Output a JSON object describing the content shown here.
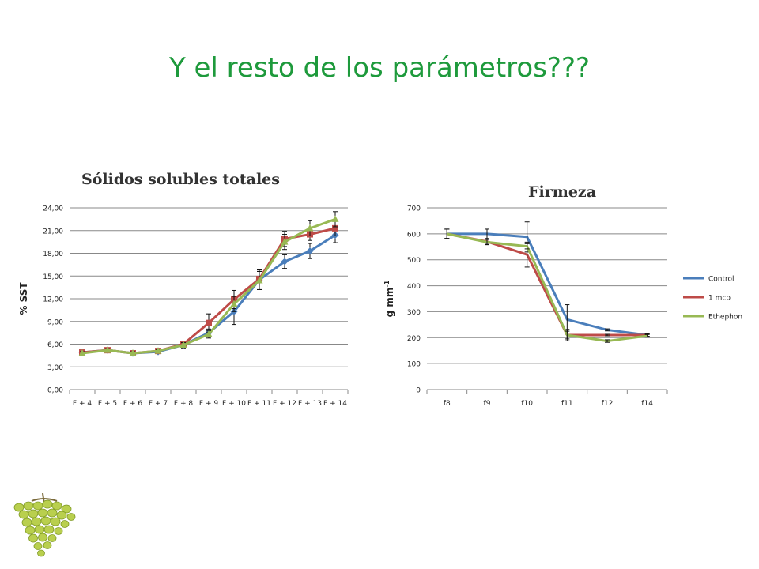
{
  "slide": {
    "title": "Y el resto de los parámetros???"
  },
  "chart_data": [
    {
      "type": "line",
      "title": "Sólidos solubles totales",
      "ylabel": "% SST",
      "xlabel": "",
      "categories": [
        "F + 4",
        "F + 5",
        "F + 6",
        "F + 7",
        "F + 8",
        "F + 9",
        "F + 10",
        "F + 11",
        "F + 12",
        "F + 13",
        "F + 14"
      ],
      "ylim": [
        0,
        24
      ],
      "yticks": [
        "0,00",
        "3,00",
        "6,00",
        "9,00",
        "12,00",
        "15,00",
        "18,00",
        "21,00",
        "24,00"
      ],
      "grid": true,
      "legend": "none",
      "series": [
        {
          "color": "#4a7ebb",
          "marker": "diamond",
          "values": [
            4.9,
            5.2,
            4.8,
            5.0,
            5.9,
            7.5,
            10.3,
            14.5,
            16.9,
            18.3,
            20.4
          ],
          "errors": [
            0.2,
            0.2,
            0.2,
            0.2,
            0.4,
            0.5,
            1.7,
            1.3,
            0.9,
            1.0,
            1.0
          ]
        },
        {
          "color": "#be4b48",
          "marker": "square",
          "values": [
            4.9,
            5.2,
            4.8,
            5.1,
            6.0,
            8.8,
            11.9,
            14.6,
            19.9,
            20.5,
            21.3
          ],
          "errors": [
            0.2,
            0.2,
            0.2,
            0.2,
            0.4,
            1.2,
            1.2,
            1.2,
            1.0,
            0.8,
            1.0
          ]
        },
        {
          "color": "#98b954",
          "marker": "triangle",
          "values": [
            4.8,
            5.2,
            4.8,
            5.1,
            5.9,
            7.3,
            11.3,
            14.4,
            19.5,
            21.3,
            22.5
          ],
          "errors": [
            0.2,
            0.2,
            0.2,
            0.2,
            0.3,
            0.5,
            1.0,
            1.2,
            1.0,
            1.0,
            1.0
          ]
        }
      ]
    },
    {
      "type": "line",
      "title": "Firmeza",
      "ylabel": "g mm",
      "ylabel_sup": "-1",
      "xlabel": "",
      "categories": [
        "f8",
        "f9",
        "f10",
        "f11",
        "f12",
        "f14"
      ],
      "ylim": [
        0,
        700
      ],
      "yticks": [
        "0",
        "100",
        "200",
        "300",
        "400",
        "500",
        "600",
        "700"
      ],
      "grid": true,
      "legend": "right",
      "series": [
        {
          "name": "Control",
          "color": "#4a7ebb",
          "values": [
            600,
            600,
            588,
            270,
            230,
            210
          ],
          "errors": [
            18,
            18,
            58,
            57,
            4,
            5
          ]
        },
        {
          "name": "1 mcp",
          "color": "#be4b48",
          "values": [
            600,
            570,
            520,
            210,
            210,
            210
          ],
          "errors": [
            18,
            10,
            48,
            22,
            3,
            5
          ]
        },
        {
          "name": "Ethephon",
          "color": "#98b954",
          "values": [
            600,
            568,
            552,
            210,
            187,
            207
          ],
          "errors": [
            18,
            10,
            10,
            15,
            5,
            5
          ]
        }
      ]
    }
  ]
}
